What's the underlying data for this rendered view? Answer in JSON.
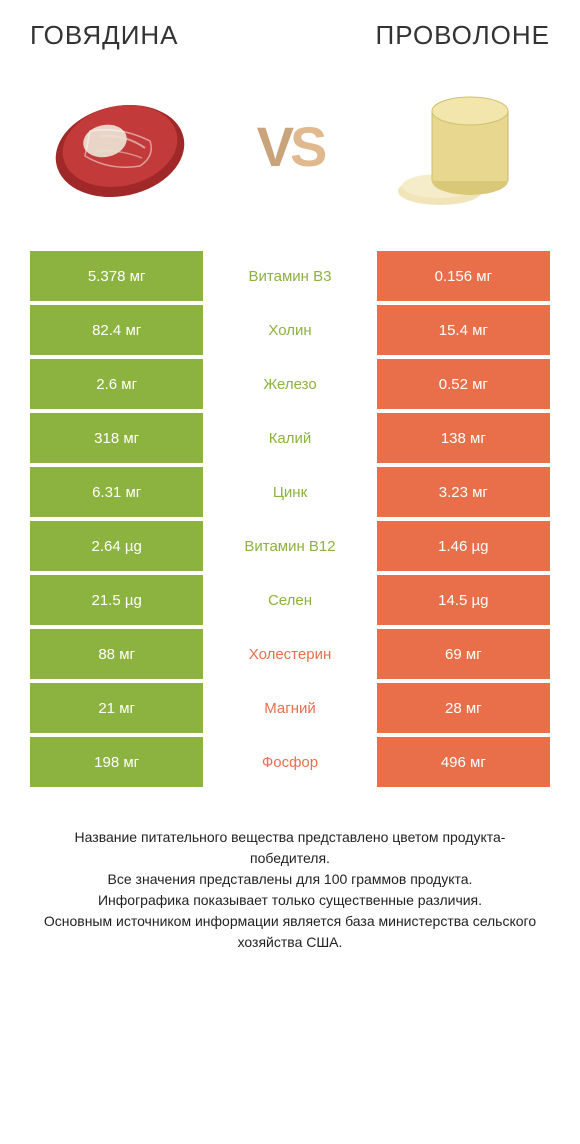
{
  "colors": {
    "green": "#8cb23f",
    "orange": "#e86f4a",
    "text_green": "#8cb23f",
    "text_orange": "#e86f4a"
  },
  "header": {
    "left_title": "ГОВЯДИНА",
    "right_title": "ПРОВОЛОНЕ",
    "vs": "VS"
  },
  "rows": [
    {
      "left": "5.378 мг",
      "center": "Витамин B3",
      "right": "0.156 мг",
      "winner": "left"
    },
    {
      "left": "82.4 мг",
      "center": "Холин",
      "right": "15.4 мг",
      "winner": "left"
    },
    {
      "left": "2.6 мг",
      "center": "Железо",
      "right": "0.52 мг",
      "winner": "left"
    },
    {
      "left": "318 мг",
      "center": "Калий",
      "right": "138 мг",
      "winner": "left"
    },
    {
      "left": "6.31 мг",
      "center": "Цинк",
      "right": "3.23 мг",
      "winner": "left"
    },
    {
      "left": "2.64 µg",
      "center": "Витамин B12",
      "right": "1.46 µg",
      "winner": "left"
    },
    {
      "left": "21.5 µg",
      "center": "Селен",
      "right": "14.5 µg",
      "winner": "left"
    },
    {
      "left": "88 мг",
      "center": "Холестерин",
      "right": "69 мг",
      "winner": "right"
    },
    {
      "left": "21 мг",
      "center": "Магний",
      "right": "28 мг",
      "winner": "right"
    },
    {
      "left": "198 мг",
      "center": "Фосфор",
      "right": "496 мг",
      "winner": "right"
    }
  ],
  "footnote": {
    "line1": "Название питательного вещества представлено цветом продукта-победителя.",
    "line2": "Все значения представлены для 100 граммов продукта.",
    "line3": "Инфографика показывает только существенные различия.",
    "line4": "Основным источником информации является база министерства сельского хозяйства США."
  }
}
